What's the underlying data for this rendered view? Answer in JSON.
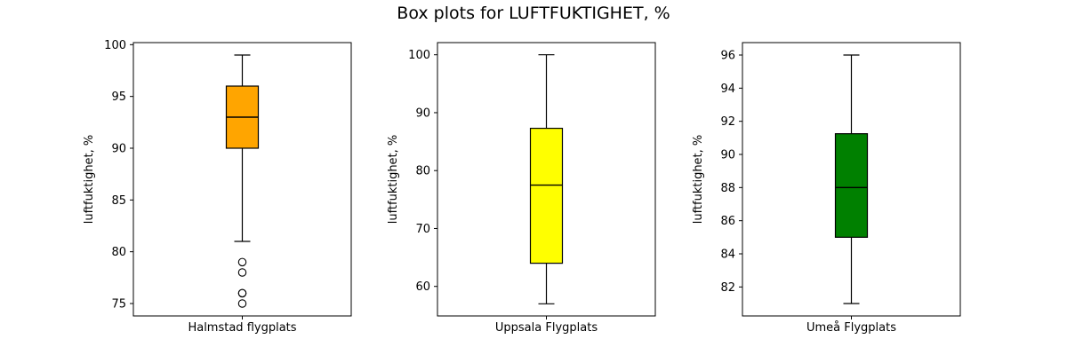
{
  "title": "Box plots for LUFTFUKTIGHET, %",
  "chart_data": [
    {
      "type": "box",
      "category": "Halmstad flygplats",
      "ylabel": "luftfuktighet, %",
      "color": "#ffa500",
      "ylim": [
        73.8,
        100.2
      ],
      "yticks": [
        75,
        80,
        85,
        90,
        95,
        100
      ],
      "stats": {
        "whisker_low": 81,
        "q1": 90,
        "median": 93,
        "q3": 96,
        "whisker_high": 99
      },
      "outliers": [
        75,
        76,
        76,
        78,
        79
      ],
      "grid": false
    },
    {
      "type": "box",
      "category": "Uppsala Flygplats",
      "ylabel": "luftfuktighet, %",
      "color": "#ffff00",
      "ylim": [
        54.9,
        102.1
      ],
      "yticks": [
        60,
        70,
        80,
        90,
        100
      ],
      "stats": {
        "whisker_low": 57,
        "q1": 64,
        "median": 77.5,
        "q3": 87.3,
        "whisker_high": 100
      },
      "outliers": [],
      "grid": false
    },
    {
      "type": "box",
      "category": "Umeå Flygplats",
      "ylabel": "luftfuktighet, %",
      "color": "#008000",
      "ylim": [
        80.25,
        96.75
      ],
      "yticks": [
        82,
        84,
        86,
        88,
        90,
        92,
        94,
        96
      ],
      "stats": {
        "whisker_low": 81,
        "q1": 85,
        "median": 88,
        "q3": 91.25,
        "whisker_high": 96
      },
      "outliers": [],
      "grid": false
    }
  ]
}
